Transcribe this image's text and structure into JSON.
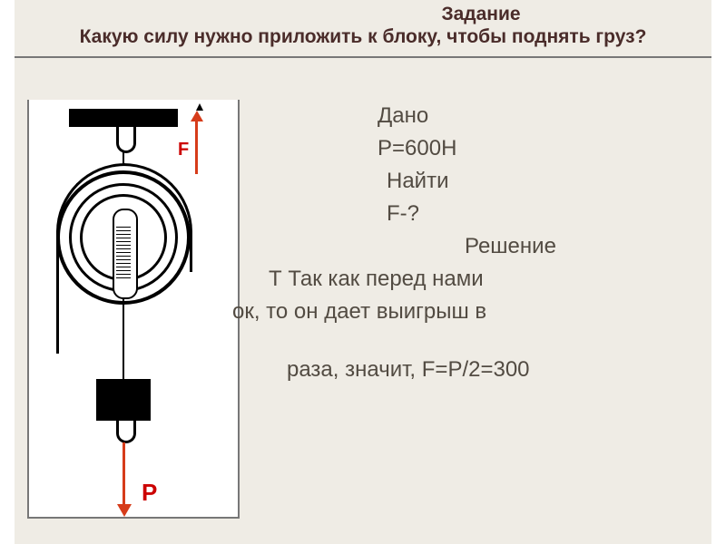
{
  "header": {
    "task_label": "Задание",
    "question": "Какую силу нужно приложить к блоку, чтобы поднять груз?"
  },
  "diagram": {
    "type": "pulley-schematic",
    "force_up": {
      "label": "F",
      "color": "#d63c1a"
    },
    "force_down": {
      "label": "P",
      "color": "#d63c1a"
    },
    "background_color": "#ffffff"
  },
  "solution": {
    "given_label": "Дано",
    "given_value": "P=600Н",
    "find_label": "Найти",
    "find_value": "F-?",
    "solution_label": "Решение",
    "line1": "Т  Так как перед нами",
    "line2": "ок,   то он дает выигрыш в",
    "line3": "раза, значит, F=P/2=300",
    "text_color": "#524b42",
    "font_size_pt": 18
  },
  "colors": {
    "slide_bg": "#efece5",
    "heading_color": "#4a2c2a",
    "accent_red": "#cc0000"
  }
}
